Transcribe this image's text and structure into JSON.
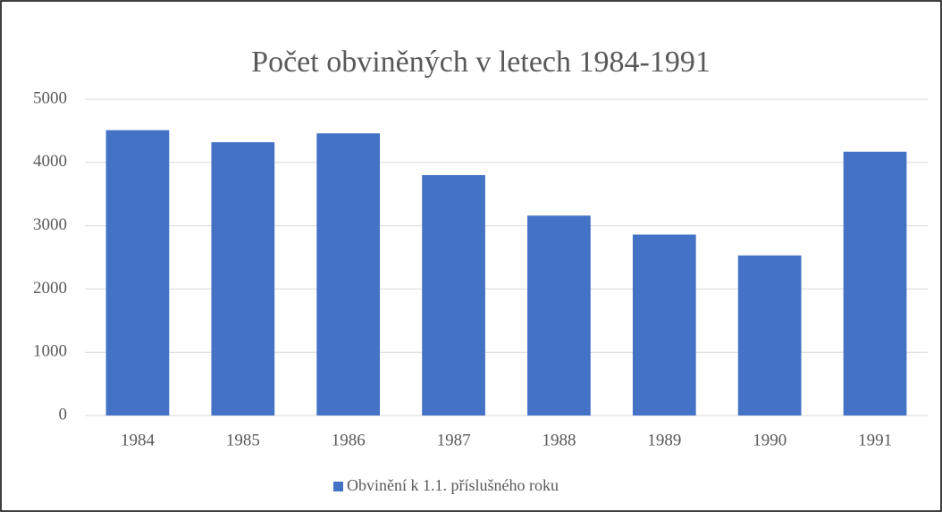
{
  "chart_data": {
    "type": "bar",
    "title": "Počet obviněných v letech 1984-1991",
    "categories": [
      "1984",
      "1985",
      "1986",
      "1987",
      "1988",
      "1989",
      "1990",
      "1991"
    ],
    "series": [
      {
        "name": "Obvinění k  1.1. příslušného roku",
        "color": "#4472c4",
        "values": [
          4510,
          4320,
          4460,
          3800,
          3160,
          2860,
          2530,
          4170
        ]
      }
    ],
    "ylim": [
      0,
      5000
    ],
    "yticks": [
      0,
      1000,
      2000,
      3000,
      4000,
      5000
    ],
    "grid": true,
    "legend": "bottom"
  }
}
